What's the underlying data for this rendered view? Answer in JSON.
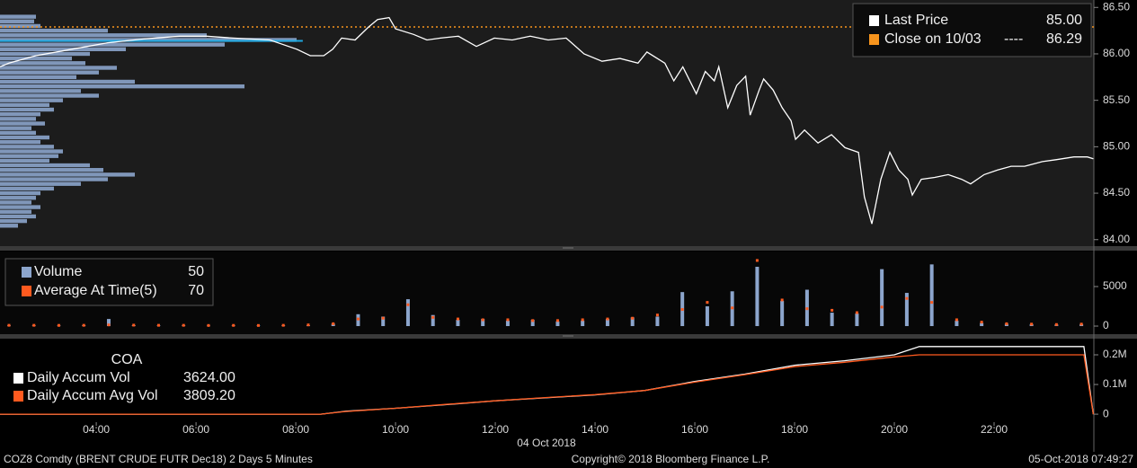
{
  "chart_data": [
    {
      "type": "line",
      "x": [
        2.07,
        2.25,
        2.79,
        3.51,
        4.23,
        4.95,
        5.67,
        6.21,
        6.75,
        7.48,
        8.02,
        8.29,
        8.56,
        8.74,
        8.92,
        9.19,
        9.46,
        9.64,
        9.87,
        10.0,
        10.36,
        10.63,
        10.9,
        11.26,
        11.62,
        11.98,
        12.34,
        12.7,
        13.06,
        13.42,
        13.78,
        14.14,
        14.5,
        14.86,
        15.04,
        15.4,
        15.58,
        15.76,
        16.03,
        16.21,
        16.39,
        16.48,
        16.66,
        16.84,
        17.02,
        17.11,
        17.29,
        17.38,
        17.57,
        17.75,
        17.93,
        18.02,
        18.2,
        18.47,
        18.74,
        19.01,
        19.28,
        19.4,
        19.55,
        19.73,
        19.91,
        20.09,
        20.27,
        20.36,
        20.54,
        20.81,
        21.08,
        21.35,
        21.53,
        21.8,
        22.07,
        22.34,
        22.61,
        22.97,
        23.24,
        23.6,
        23.87,
        23.99
      ],
      "series": [
        {
          "name": "Last Price",
          "color": "#ffffff",
          "legend_value": "85.00",
          "values": [
            85.86,
            85.9,
            85.98,
            86.05,
            86.12,
            86.16,
            86.19,
            86.19,
            86.17,
            86.15,
            86.05,
            85.98,
            85.98,
            86.05,
            86.17,
            86.15,
            86.29,
            86.37,
            86.39,
            86.27,
            86.21,
            86.15,
            86.17,
            86.19,
            86.08,
            86.17,
            86.15,
            86.19,
            86.15,
            86.17,
            86.0,
            85.92,
            85.95,
            85.9,
            86.02,
            85.9,
            85.71,
            85.86,
            85.57,
            85.81,
            85.71,
            85.86,
            85.42,
            85.66,
            85.76,
            85.34,
            85.61,
            85.73,
            85.61,
            85.42,
            85.28,
            85.08,
            85.18,
            85.04,
            85.13,
            84.99,
            84.94,
            84.46,
            84.17,
            84.65,
            84.94,
            84.75,
            84.65,
            84.48,
            84.65,
            84.67,
            84.7,
            84.65,
            84.6,
            84.7,
            84.75,
            84.79,
            84.79,
            84.84,
            84.86,
            84.89,
            84.89,
            84.87
          ]
        }
      ],
      "close_line": {
        "name": "Close on 10/03",
        "dash_label": "----",
        "value": 86.29,
        "color": "#f7941d"
      },
      "hlines": [
        {
          "value": 86.14,
          "x_end": 8.14,
          "color": "#1fa9e1"
        }
      ],
      "volume_profile": {
        "color": "#8ca5cc",
        "prices": [
          86.4,
          86.35,
          86.3,
          86.25,
          86.2,
          86.15,
          86.1,
          86.05,
          86.0,
          85.95,
          85.9,
          85.85,
          85.8,
          85.75,
          85.7,
          85.65,
          85.6,
          85.55,
          85.5,
          85.45,
          85.4,
          85.35,
          85.3,
          85.25,
          85.2,
          85.15,
          85.1,
          85.05,
          85.0,
          84.95,
          84.9,
          84.85,
          84.8,
          84.75,
          84.7,
          84.65,
          84.6,
          84.55,
          84.5,
          84.45,
          84.4,
          84.35,
          84.3,
          84.25,
          84.2,
          84.15
        ],
        "values": [
          40,
          38,
          45,
          120,
          230,
          330,
          250,
          140,
          100,
          80,
          95,
          130,
          110,
          85,
          150,
          272,
          90,
          110,
          70,
          55,
          60,
          45,
          40,
          50,
          35,
          40,
          55,
          45,
          60,
          70,
          65,
          55,
          100,
          115,
          150,
          120,
          90,
          60,
          45,
          40,
          35,
          45,
          35,
          40,
          30,
          20
        ]
      },
      "xlim": [
        2.07,
        24.0
      ],
      "ylim": [
        83.93,
        86.58
      ],
      "yticks": [
        {
          "value": 84,
          "label": "84.00"
        },
        {
          "value": 84.5,
          "label": "84.50"
        },
        {
          "value": 85,
          "label": "85.00"
        },
        {
          "value": 85.5,
          "label": "85.50"
        },
        {
          "value": 86,
          "label": "86.00"
        },
        {
          "value": 86.5,
          "label": "86.50"
        }
      ]
    },
    {
      "type": "bar",
      "x": [
        2.25,
        2.75,
        3.25,
        3.75,
        4.25,
        4.75,
        5.25,
        5.75,
        6.25,
        6.75,
        7.25,
        7.75,
        8.25,
        8.75,
        9.25,
        9.75,
        10.25,
        10.75,
        11.25,
        11.75,
        12.25,
        12.75,
        13.25,
        13.75,
        14.25,
        14.75,
        15.25,
        15.75,
        16.25,
        16.75,
        17.25,
        17.75,
        18.25,
        18.75,
        19.25,
        19.75,
        20.25,
        20.75,
        21.25,
        21.75,
        22.25,
        22.75,
        23.25,
        23.75
      ],
      "series": [
        {
          "name": "Volume",
          "color": "#8ca5cc",
          "legend_value": 50,
          "values": [
            80,
            90,
            70,
            100,
            900,
            120,
            80,
            90,
            60,
            80,
            70,
            90,
            100,
            300,
            1500,
            1200,
            3400,
            1400,
            800,
            900,
            700,
            800,
            600,
            700,
            900,
            1100,
            1200,
            4300,
            2500,
            4400,
            7500,
            3200,
            4600,
            1700,
            1600,
            7200,
            4200,
            7800,
            700,
            400,
            300,
            250,
            200,
            250
          ]
        },
        {
          "name": "Average At Time(5)",
          "color": "#ff5a1f",
          "legend_value": 70,
          "values": [
            100,
            100,
            90,
            100,
            150,
            120,
            100,
            100,
            80,
            90,
            80,
            100,
            150,
            300,
            900,
            1000,
            2700,
            1100,
            900,
            800,
            800,
            700,
            700,
            800,
            900,
            1000,
            1400,
            2100,
            3000,
            2300,
            8300,
            3300,
            2200,
            2000,
            1700,
            2400,
            3500,
            3000,
            800,
            500,
            300,
            250,
            200,
            250
          ]
        }
      ],
      "xlim": [
        2.07,
        24.0
      ],
      "ylim": [
        -1020,
        9430
      ],
      "yticks": [
        0,
        5000
      ]
    },
    {
      "type": "line",
      "title": "COA",
      "x": [
        2.07,
        8.5,
        9,
        10,
        11,
        12,
        13,
        14,
        15,
        16,
        17,
        18,
        19,
        20,
        20.5,
        23.8,
        23.99
      ],
      "series": [
        {
          "name": "Daily Accum Vol",
          "color": "#ffffff",
          "legend_value": "3624.00",
          "values": [
            0,
            0,
            10000,
            20000,
            32000,
            45000,
            55000,
            65000,
            80000,
            110000,
            135000,
            165000,
            180000,
            200000,
            228000,
            228000,
            0
          ]
        },
        {
          "name": "Daily Accum Avg Vol",
          "color": "#ff5a1f",
          "legend_value": "3809.20",
          "values": [
            0,
            0,
            9000,
            20000,
            33000,
            45000,
            56000,
            66000,
            80000,
            108000,
            133000,
            160000,
            175000,
            193000,
            200000,
            200000,
            0
          ]
        }
      ],
      "xlim": [
        2.07,
        24.0
      ],
      "ylim": [
        -27000,
        251500
      ],
      "yticks": [
        0,
        {
          "value": 100000,
          "label": "0.1M"
        },
        {
          "value": 200000,
          "label": "0.2M"
        }
      ],
      "xticks": [
        {
          "value": 4,
          "label": "04:00"
        },
        {
          "value": 6,
          "label": "06:00"
        },
        {
          "value": 8,
          "label": "08:00"
        },
        {
          "value": 10,
          "label": "10:00"
        },
        {
          "value": 12,
          "label": "12:00"
        },
        {
          "value": 14,
          "label": "14:00"
        },
        {
          "value": 16,
          "label": "16:00"
        },
        {
          "value": 18,
          "label": "18:00"
        },
        {
          "value": 20,
          "label": "20:00"
        },
        {
          "value": 22,
          "label": "22:00"
        }
      ],
      "xlabel": "04 Oct 2018"
    }
  ],
  "footer": {
    "left": "COZ8 Comdty (BRENT CRUDE FUTR  Dec18) 2 Days 5 Minutes",
    "center": "Copyright© 2018 Bloomberg Finance L.P.",
    "right": "05-Oct-2018 07:49:27"
  }
}
